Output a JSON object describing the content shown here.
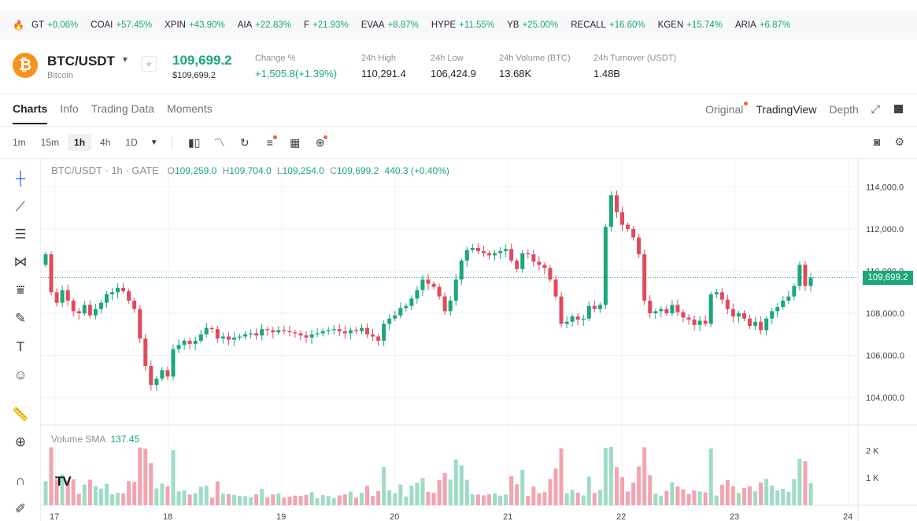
{
  "ticker": [
    {
      "symbol": "GT",
      "change": "+0.06%"
    },
    {
      "symbol": "COAI",
      "change": "+57.45%"
    },
    {
      "symbol": "XPIN",
      "change": "+43.90%"
    },
    {
      "symbol": "AIA",
      "change": "+22.83%"
    },
    {
      "symbol": "F",
      "change": "+21.93%"
    },
    {
      "symbol": "EVAA",
      "change": "+8.87%"
    },
    {
      "symbol": "HYPE",
      "change": "+11.55%"
    },
    {
      "symbol": "YB",
      "change": "+25.00%"
    },
    {
      "symbol": "RECALL",
      "change": "+16.60%"
    },
    {
      "symbol": "KGEN",
      "change": "+15.74%"
    },
    {
      "symbol": "ARIA",
      "change": "+6.87%"
    }
  ],
  "header": {
    "coin_glyph": "₿",
    "pair": "BTC/USDT",
    "coin_name": "Bitcoin",
    "price": "109,699.2",
    "price_usd": "$109,699.2",
    "change_label": "Change %",
    "change_value": "+1,505.8(+1.39%)",
    "high_label": "24h High",
    "high_value": "110,291.4",
    "low_label": "24h Low",
    "low_value": "106,424.9",
    "volume_label": "24h Volume (BTC)",
    "volume_value": "13.68K",
    "turnover_label": "24h Turnover (USDT)",
    "turnover_value": "1.48B"
  },
  "tabs": [
    "Charts",
    "Info",
    "Trading Data",
    "Moments"
  ],
  "view_tabs": [
    "Original",
    "TradingView",
    "Depth"
  ],
  "intervals": [
    "1m",
    "15m",
    "1h",
    "4h",
    "1D"
  ],
  "active_interval": "1h",
  "legend": {
    "symbol": "BTC/USDT · 1h · GATE",
    "o_key": "O",
    "o": "109,259.0",
    "h_key": "H",
    "h": "109,704.0",
    "l_key": "L",
    "l": "109,254.0",
    "c_key": "C",
    "c": "109,699.2",
    "chg": "440.3 (+0.40%)"
  },
  "volume_legend": {
    "label": "Volume SMA",
    "value": "137.45"
  },
  "last_price_tag": "109,699.2",
  "colors": {
    "up": "#1aa87a",
    "down": "#e04a5e",
    "vol_up": "#9fdcc4",
    "vol_down": "#f2a4b0"
  },
  "chart_data": {
    "type": "candlestick",
    "title": "BTC/USDT · 1h · GATE",
    "x_ticks": [
      "17",
      "18",
      "19",
      "20",
      "21",
      "22",
      "23",
      "24"
    ],
    "price_ticks": [
      "114,000.0",
      "112,000.0",
      "110,000.0",
      "108,000.0",
      "106,000.0",
      "104,000.0"
    ],
    "volume_ticks": [
      "2 K",
      "1 K"
    ],
    "y_range": [
      103000,
      114500
    ],
    "volume_range": [
      0,
      2300
    ],
    "closes": [
      110800,
      109000,
      108500,
      109100,
      108600,
      108100,
      108000,
      108400,
      107900,
      108200,
      108500,
      108900,
      109000,
      109200,
      109050,
      108600,
      108200,
      106800,
      105500,
      104600,
      104900,
      105300,
      105000,
      106300,
      106500,
      106700,
      106550,
      106700,
      107000,
      107300,
      107250,
      106800,
      106900,
      106750,
      106850,
      106900,
      107000,
      107050,
      106950,
      107250,
      107200,
      107100,
      107200,
      107150,
      107100,
      107050,
      106950,
      106850,
      107000,
      107050,
      107150,
      107200,
      107250,
      107150,
      107050,
      107200,
      107150,
      107300,
      107000,
      106900,
      106700,
      107500,
      107750,
      107900,
      108250,
      108350,
      108700,
      109100,
      109600,
      109400,
      109250,
      108800,
      108100,
      108600,
      109600,
      110500,
      111000,
      111100,
      110950,
      110850,
      110750,
      110850,
      110950,
      111050,
      110500,
      110100,
      110850,
      110800,
      110450,
      110300,
      110150,
      109600,
      108800,
      107500,
      107600,
      107850,
      107700,
      107750,
      108350,
      108200,
      108400,
      112100,
      113600,
      112800,
      112200,
      112000,
      111600,
      110800,
      108600,
      108000,
      108100,
      108200,
      108000,
      108400,
      108050,
      107800,
      107700,
      107450,
      107650,
      107500,
      108900,
      109000,
      108650,
      108200,
      107850,
      108000,
      107750,
      107400,
      107600,
      107200,
      107750,
      108100,
      108300,
      108600,
      108800,
      109300,
      110300,
      109300,
      109699
    ]
  }
}
